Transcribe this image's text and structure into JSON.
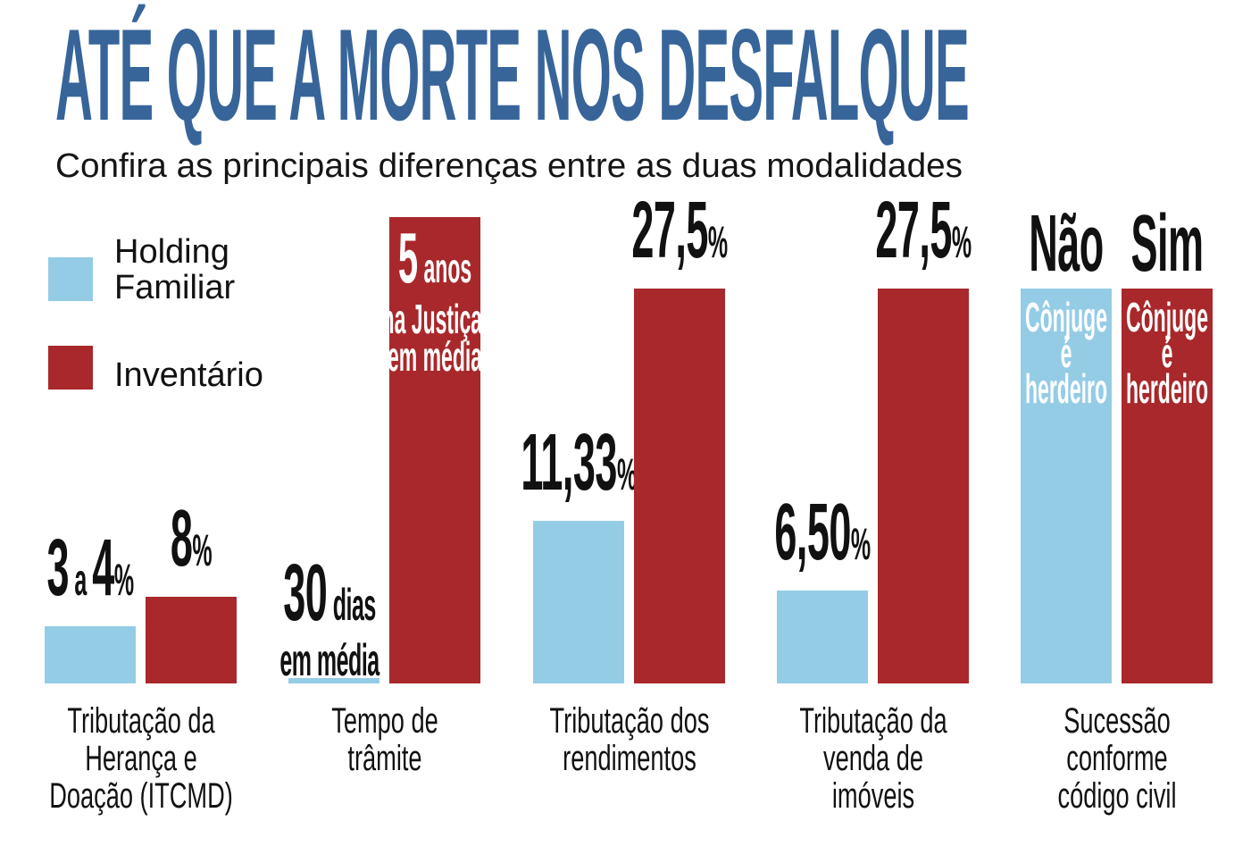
{
  "title": "ATÉ QUE A MORTE NOS DESFALQUE",
  "subtitle": "Confira as principais diferenças entre as duas modalidades",
  "colors": {
    "title": "#37659a",
    "holding": "#94cce6",
    "inventario": "#a8282b",
    "text": "#111111"
  },
  "legend": [
    {
      "label_lines": [
        "Holding",
        "Familiar"
      ],
      "color": "#94cce6"
    },
    {
      "label_lines": [
        "Inventário"
      ],
      "color": "#a8282b"
    }
  ],
  "chart_data": {
    "type": "bar",
    "legend_placement": "top-left",
    "grid": false,
    "categories": [
      [
        "Tributação da",
        "Herança e",
        "Doação (ITCMD)"
      ],
      [
        "Tempo de",
        "trâmite"
      ],
      [
        "Tributação dos",
        "rendimentos"
      ],
      [
        "Tributação da",
        "venda de",
        "imóveis"
      ],
      [
        "Sucessão",
        "conforme",
        "código civil"
      ]
    ],
    "series": [
      {
        "name": "Holding Familiar",
        "values": [
          3.5,
          30,
          11.33,
          6.5,
          null
        ],
        "units": [
          "%",
          "dias",
          "%",
          "%",
          ""
        ],
        "labels": [
          [
            [
              {
                "t": "3",
                "big": true
              },
              {
                "t": " a "
              },
              {
                "t": "4",
                "big": true
              },
              {
                "t": "%"
              }
            ]
          ],
          [
            [
              {
                "t": "30",
                "big": true
              },
              {
                "t": " dias"
              }
            ],
            [
              {
                "t": "em média"
              }
            ]
          ],
          [
            [
              {
                "t": "11,33",
                "big": true
              },
              {
                "t": "%"
              }
            ]
          ],
          [
            [
              {
                "t": "6,50",
                "big": true
              },
              {
                "t": "%"
              }
            ]
          ],
          [
            [
              {
                "t": "Não",
                "big": true
              }
            ]
          ]
        ],
        "inner_text": [
          null,
          null,
          null,
          null,
          [
            "Cônjuge",
            "é",
            "herdeiro"
          ]
        ]
      },
      {
        "name": "Inventário",
        "values": [
          8,
          5,
          27.5,
          27.5,
          null
        ],
        "units": [
          "%",
          "anos",
          "%",
          "%",
          ""
        ],
        "labels": [
          [
            [
              {
                "t": "8",
                "big": true
              },
              {
                "t": "%"
              }
            ]
          ],
          null,
          [
            [
              {
                "t": "27,5",
                "big": true
              },
              {
                "t": "%"
              }
            ]
          ],
          [
            [
              {
                "t": "27,5",
                "big": true
              },
              {
                "t": "%"
              }
            ]
          ],
          [
            [
              {
                "t": "Sim",
                "big": true
              }
            ]
          ]
        ],
        "inner_text": [
          null,
          [
            [
              {
                "t": "5",
                "big": true
              },
              {
                "t": " anos"
              }
            ],
            [
              {
                "t": "na Justiça,"
              }
            ],
            [
              {
                "t": "em média"
              }
            ]
          ],
          null,
          null,
          [
            "Cônjuge",
            "é",
            "herdeiro"
          ]
        ]
      }
    ]
  }
}
